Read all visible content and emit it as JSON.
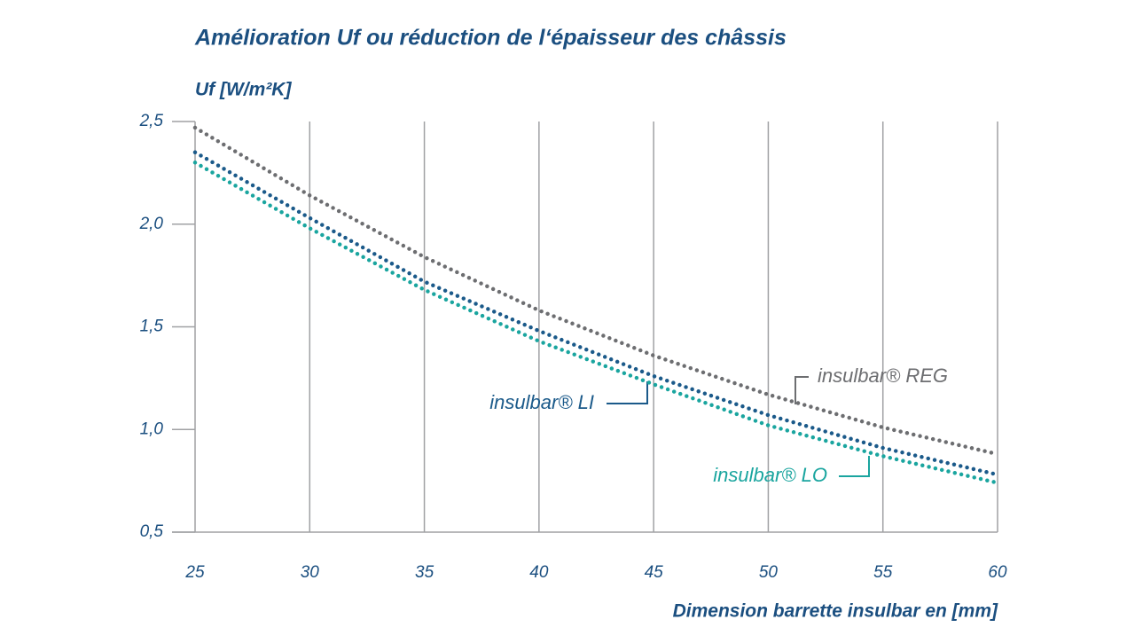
{
  "chart_data": {
    "type": "line",
    "title": "Amélioration Uf ou réduction de l‘épaisseur des châssis",
    "y_label": "Uf [W/m²K]",
    "x_label": "Dimension barrette insulbar en [mm]",
    "x": [
      25,
      30,
      35,
      40,
      45,
      50,
      55,
      60
    ],
    "series": [
      {
        "name": "insulbar® REG",
        "color": "#6d6e71",
        "values": [
          2.47,
          2.14,
          1.84,
          1.58,
          1.36,
          1.17,
          1.01,
          0.88
        ]
      },
      {
        "name": "insulbar® LI",
        "color": "#1b5a8a",
        "values": [
          2.35,
          2.03,
          1.72,
          1.48,
          1.26,
          1.07,
          0.91,
          0.78
        ]
      },
      {
        "name": "insulbar® LO",
        "color": "#1aa59f",
        "values": [
          2.3,
          1.98,
          1.68,
          1.43,
          1.22,
          1.02,
          0.87,
          0.74
        ]
      }
    ],
    "xlim": [
      25,
      60
    ],
    "xticks": [
      25,
      30,
      35,
      40,
      45,
      50,
      55,
      60
    ],
    "ylim": [
      0.5,
      2.5
    ],
    "yticks": [
      {
        "value": 0.5,
        "label": "0,5"
      },
      {
        "value": 1.0,
        "label": "1,0"
      },
      {
        "value": 1.5,
        "label": "1,5"
      },
      {
        "value": 2.0,
        "label": "2,0"
      },
      {
        "value": 2.5,
        "label": "2,5"
      }
    ],
    "grid": true
  }
}
